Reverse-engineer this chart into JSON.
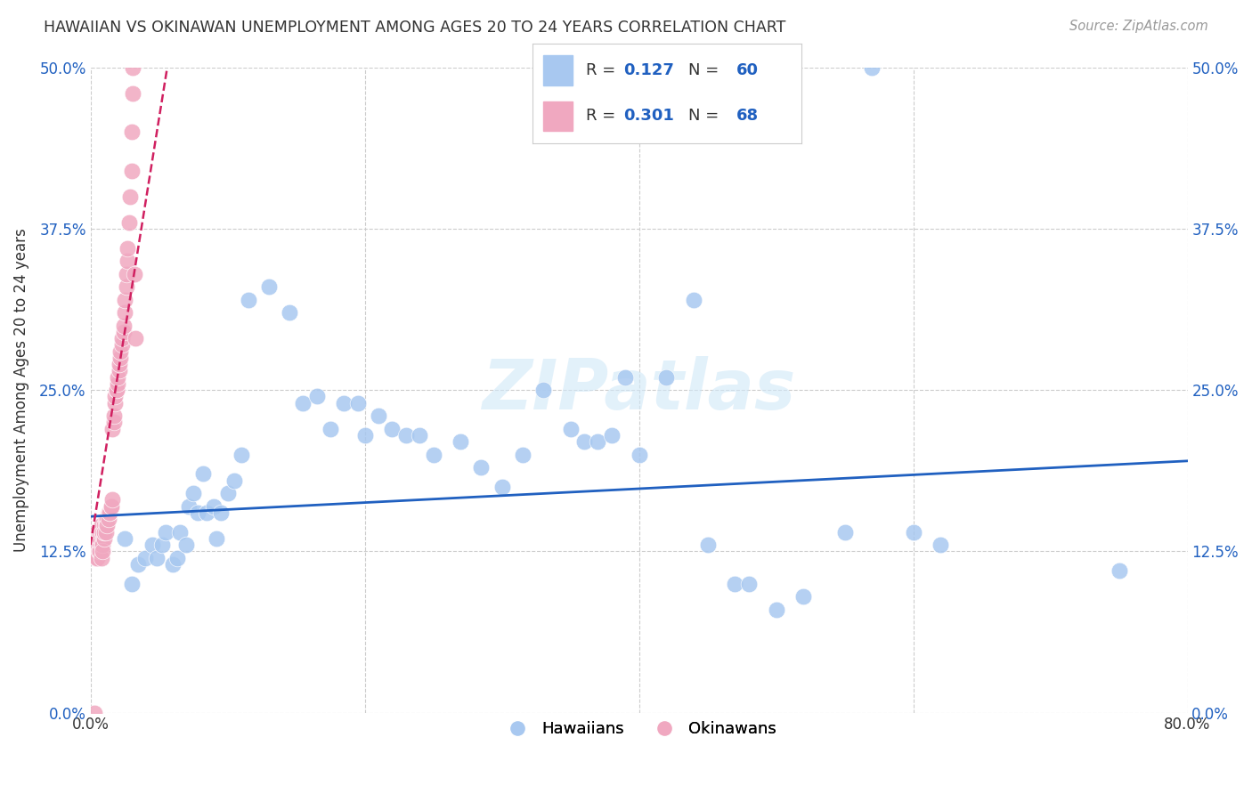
{
  "title": "HAWAIIAN VS OKINAWAN UNEMPLOYMENT AMONG AGES 20 TO 24 YEARS CORRELATION CHART",
  "source": "Source: ZipAtlas.com",
  "ylabel": "Unemployment Among Ages 20 to 24 years",
  "xlim": [
    0.0,
    0.8
  ],
  "ylim": [
    0.0,
    0.5
  ],
  "xticks": [
    0.0,
    0.2,
    0.4,
    0.6,
    0.8
  ],
  "xticklabels": [
    "0.0%",
    "",
    "",
    "",
    "80.0%"
  ],
  "yticks": [
    0.0,
    0.125,
    0.25,
    0.375,
    0.5
  ],
  "yticklabels": [
    "0.0%",
    "12.5%",
    "25.0%",
    "37.5%",
    "50.0%"
  ],
  "hawaii_R": 0.127,
  "hawaii_N": 60,
  "okinawa_R": 0.301,
  "okinawa_N": 68,
  "hawaii_color": "#a8c8f0",
  "hawaii_line_color": "#2060c0",
  "okinawa_color": "#f0a8c0",
  "okinawa_line_color": "#d02060",
  "watermark_color": "#d0e8f8",
  "background_color": "#ffffff",
  "grid_color": "#cccccc",
  "hawaii_scatter_x": [
    0.025,
    0.03,
    0.035,
    0.04,
    0.045,
    0.048,
    0.052,
    0.055,
    0.06,
    0.063,
    0.065,
    0.07,
    0.072,
    0.075,
    0.078,
    0.082,
    0.085,
    0.09,
    0.092,
    0.095,
    0.1,
    0.105,
    0.11,
    0.115,
    0.13,
    0.145,
    0.155,
    0.165,
    0.175,
    0.185,
    0.195,
    0.2,
    0.21,
    0.22,
    0.23,
    0.24,
    0.25,
    0.27,
    0.285,
    0.3,
    0.315,
    0.33,
    0.35,
    0.36,
    0.37,
    0.38,
    0.39,
    0.4,
    0.42,
    0.44,
    0.45,
    0.47,
    0.48,
    0.5,
    0.52,
    0.55,
    0.57,
    0.6,
    0.62,
    0.75
  ],
  "hawaii_scatter_y": [
    0.135,
    0.1,
    0.115,
    0.12,
    0.13,
    0.12,
    0.13,
    0.14,
    0.115,
    0.12,
    0.14,
    0.13,
    0.16,
    0.17,
    0.155,
    0.185,
    0.155,
    0.16,
    0.135,
    0.155,
    0.17,
    0.18,
    0.2,
    0.32,
    0.33,
    0.31,
    0.24,
    0.245,
    0.22,
    0.24,
    0.24,
    0.215,
    0.23,
    0.22,
    0.215,
    0.215,
    0.2,
    0.21,
    0.19,
    0.175,
    0.2,
    0.25,
    0.22,
    0.21,
    0.21,
    0.215,
    0.26,
    0.2,
    0.26,
    0.32,
    0.13,
    0.1,
    0.1,
    0.08,
    0.09,
    0.14,
    0.5,
    0.14,
    0.13,
    0.11
  ],
  "okinawa_scatter_x": [
    0.003,
    0.004,
    0.004,
    0.005,
    0.005,
    0.005,
    0.006,
    0.006,
    0.006,
    0.007,
    0.007,
    0.007,
    0.007,
    0.008,
    0.008,
    0.008,
    0.008,
    0.009,
    0.009,
    0.009,
    0.01,
    0.01,
    0.01,
    0.01,
    0.011,
    0.011,
    0.011,
    0.012,
    0.012,
    0.013,
    0.013,
    0.014,
    0.014,
    0.015,
    0.015,
    0.016,
    0.016,
    0.017,
    0.017,
    0.018,
    0.018,
    0.019,
    0.019,
    0.02,
    0.02,
    0.021,
    0.021,
    0.022,
    0.022,
    0.023,
    0.023,
    0.024,
    0.024,
    0.025,
    0.025,
    0.026,
    0.026,
    0.027,
    0.027,
    0.028,
    0.029,
    0.03,
    0.03,
    0.031,
    0.031,
    0.032,
    0.032,
    0.033
  ],
  "okinawa_scatter_y": [
    0.0,
    0.12,
    0.13,
    0.135,
    0.14,
    0.12,
    0.125,
    0.14,
    0.125,
    0.13,
    0.135,
    0.14,
    0.125,
    0.13,
    0.14,
    0.145,
    0.12,
    0.13,
    0.14,
    0.125,
    0.135,
    0.14,
    0.145,
    0.14,
    0.145,
    0.15,
    0.14,
    0.15,
    0.145,
    0.155,
    0.15,
    0.155,
    0.155,
    0.16,
    0.16,
    0.165,
    0.22,
    0.225,
    0.23,
    0.24,
    0.245,
    0.25,
    0.25,
    0.255,
    0.26,
    0.265,
    0.27,
    0.275,
    0.28,
    0.285,
    0.29,
    0.295,
    0.3,
    0.31,
    0.32,
    0.33,
    0.34,
    0.35,
    0.36,
    0.38,
    0.4,
    0.42,
    0.45,
    0.48,
    0.5,
    0.52,
    0.34,
    0.29
  ],
  "hawaii_trend_x": [
    0.0,
    0.8
  ],
  "hawaii_trend_y": [
    0.152,
    0.195
  ],
  "okinawa_trend_x": [
    0.0,
    0.056
  ],
  "okinawa_trend_y": [
    0.13,
    0.5
  ]
}
